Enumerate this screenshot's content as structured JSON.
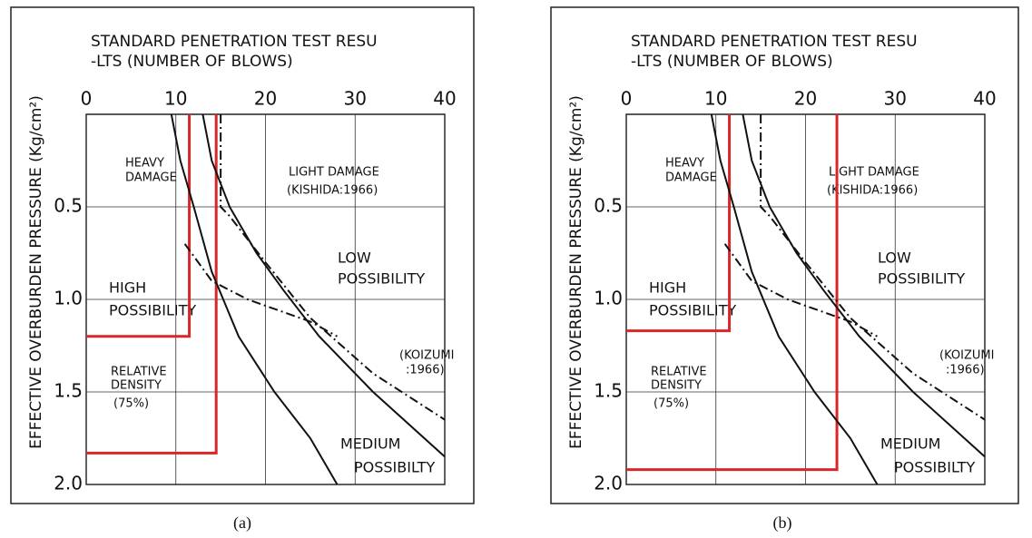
{
  "chart_data": [
    {
      "type": "line",
      "xlabel": [
        "STANDARD  PENETRATION  TEST RESU",
        "-LTS    (NUMBER OF BLOWS)"
      ],
      "ylabel": "EFFECTIVE  OVERBURDEN  PRESSURE  (Kg/cm²)",
      "caption": "(a)",
      "xlim": [
        0,
        40
      ],
      "xticks": [
        0,
        10,
        20,
        30,
        40
      ],
      "ylim": [
        0,
        2
      ],
      "yticks": [
        {
          "value": 0.5,
          "label": "0.5"
        },
        {
          "value": 1,
          "label": "1.0"
        },
        {
          "value": 1.5,
          "label": "1.5"
        },
        {
          "value": 2,
          "label": "2.0"
        }
      ],
      "grid": true,
      "inverted_y": true,
      "annotations": [
        "HEAVY",
        "DAMAGE",
        "LIGHT DAMAGE",
        "(KISHIDA:1966)",
        "LOW",
        "POSSIBILITY",
        "HIGH",
        "POSSIBILITY",
        "RELATIVE",
        "DENSITY",
        "(75%)",
        "(KOIZUMI",
        ":1966)",
        "MEDIUM",
        "POSSIBILTY"
      ],
      "series": [
        {
          "color": "#d9262a",
          "x": [
            11.5,
            11.5,
            0
          ],
          "values": [
            0,
            1.2,
            1.2
          ]
        },
        {
          "color": "#d9262a",
          "x": [
            14.5,
            14.5,
            0
          ],
          "values": [
            0,
            1.83,
            1.83
          ]
        },
        {
          "color": "#111111",
          "x": [
            9.5,
            10.5,
            12,
            14,
            17,
            21,
            25,
            28
          ],
          "values": [
            0,
            0.25,
            0.5,
            0.85,
            1.2,
            1.5,
            1.75,
            2
          ]
        },
        {
          "color": "#111111",
          "x": [
            13,
            14,
            16,
            19,
            22,
            26,
            32,
            40
          ],
          "values": [
            0,
            0.25,
            0.5,
            0.75,
            0.95,
            1.2,
            1.5,
            1.85
          ]
        },
        {
          "color": "#111111",
          "style": "dashdot",
          "x": [
            15,
            15,
            16,
            20,
            25,
            32,
            40
          ],
          "values": [
            0,
            0.5,
            0.55,
            0.8,
            1.1,
            1.4,
            1.65
          ]
        },
        {
          "color": "#111111",
          "style": "dashdot",
          "x": [
            11,
            14,
            18,
            25,
            28
          ],
          "values": [
            0.7,
            0.9,
            1,
            1.12,
            1.2
          ]
        }
      ]
    },
    {
      "type": "line",
      "xlabel": [
        "STANDARD  PENETRATION  TEST RESU",
        "-LTS    (NUMBER OF BLOWS)"
      ],
      "ylabel": "EFFECTIVE  OVERBURDEN  PRESSURE  (Kg/cm²)",
      "caption": "(b)",
      "xlim": [
        0,
        40
      ],
      "xticks": [
        0,
        10,
        20,
        30,
        40
      ],
      "ylim": [
        0,
        2
      ],
      "yticks": [
        {
          "value": 0.5,
          "label": "0.5"
        },
        {
          "value": 1,
          "label": "1.0"
        },
        {
          "value": 1.5,
          "label": "1.5"
        },
        {
          "value": 2,
          "label": "2.0"
        }
      ],
      "grid": true,
      "inverted_y": true,
      "annotations": [
        "HEAVY",
        "DAMAGE",
        "LIGHT DAMAGE",
        "(KISHIDA:1966)",
        "LOW",
        "POSSIBILITY",
        "HIGH",
        "POSSIBILITY",
        "RELATIVE",
        "DENSITY",
        "(75%)",
        "(KOIZUMI",
        ":1966)",
        "MEDIUM",
        "POSSIBILTY"
      ],
      "series": [
        {
          "color": "#d9262a",
          "x": [
            11.5,
            11.5,
            0
          ],
          "values": [
            0,
            1.17,
            1.17
          ]
        },
        {
          "color": "#d9262a",
          "x": [
            23.5,
            23.5,
            0
          ],
          "values": [
            0,
            1.92,
            1.92
          ]
        },
        {
          "color": "#111111",
          "x": [
            9.5,
            10.5,
            12,
            14,
            17,
            21,
            25,
            28
          ],
          "values": [
            0,
            0.25,
            0.5,
            0.85,
            1.2,
            1.5,
            1.75,
            2
          ]
        },
        {
          "color": "#111111",
          "x": [
            13,
            14,
            16,
            19,
            22,
            26,
            32,
            40
          ],
          "values": [
            0,
            0.25,
            0.5,
            0.75,
            0.95,
            1.2,
            1.5,
            1.85
          ]
        },
        {
          "color": "#111111",
          "style": "dashdot",
          "x": [
            15,
            15,
            16,
            20,
            25,
            32,
            40
          ],
          "values": [
            0,
            0.5,
            0.55,
            0.8,
            1.1,
            1.4,
            1.65
          ]
        },
        {
          "color": "#111111",
          "style": "dashdot",
          "x": [
            11,
            14,
            18,
            25,
            28
          ],
          "values": [
            0.7,
            0.9,
            1,
            1.12,
            1.2
          ]
        }
      ]
    }
  ]
}
